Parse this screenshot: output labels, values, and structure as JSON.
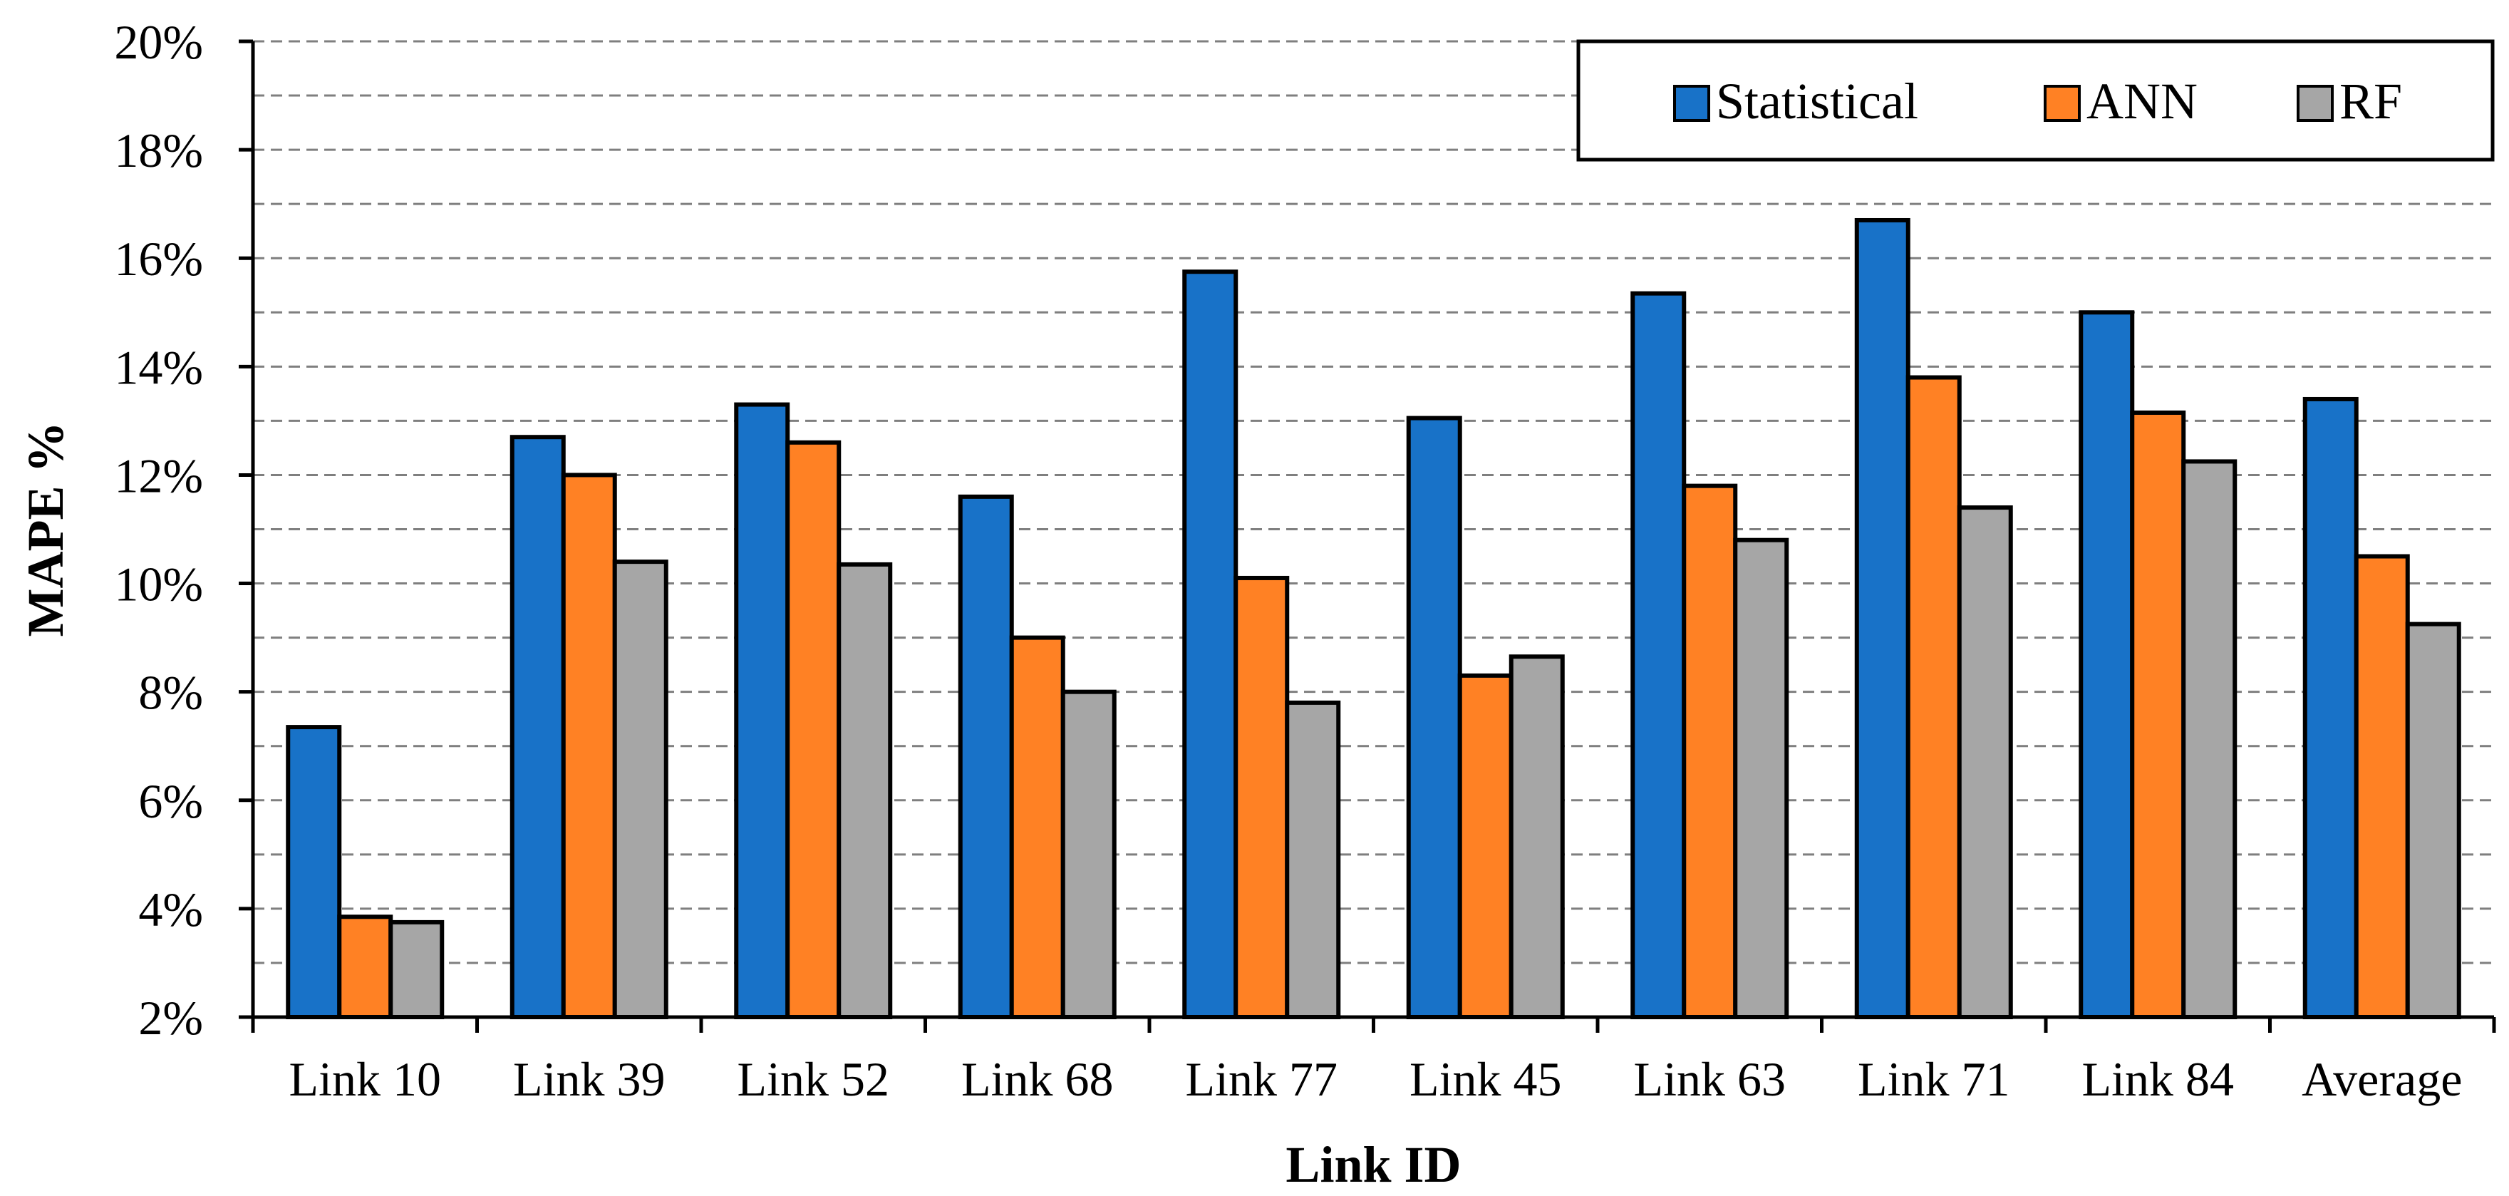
{
  "chart_data": {
    "type": "bar",
    "categories": [
      "Link 10",
      "Link 39",
      "Link 52",
      "Link 68",
      "Link 77",
      "Link 45",
      "Link 63",
      "Link 71",
      "Link 84",
      "Average"
    ],
    "series": [
      {
        "name": "Statistical",
        "color": "#1872C8",
        "values": [
          7.35,
          12.7,
          13.3,
          11.6,
          15.75,
          13.05,
          15.35,
          16.7,
          15.0,
          13.4
        ]
      },
      {
        "name": "ANN",
        "color": "#FF8124",
        "values": [
          3.85,
          12.0,
          12.6,
          9.0,
          10.1,
          8.3,
          11.8,
          13.8,
          13.15,
          10.5
        ]
      },
      {
        "name": "RF",
        "color": "#A6A6A6",
        "values": [
          3.75,
          10.4,
          10.35,
          8.0,
          7.8,
          8.65,
          10.8,
          11.4,
          12.25,
          9.25
        ]
      }
    ],
    "xlabel": "Link ID",
    "ylabel": "MAPE %",
    "ylim": [
      2,
      20
    ],
    "yticks": [
      "2%",
      "4%",
      "6%",
      "8%",
      "10%",
      "12%",
      "14%",
      "16%",
      "18%",
      "20%"
    ],
    "ytick_values": [
      2,
      4,
      6,
      8,
      10,
      12,
      14,
      16,
      18,
      20
    ],
    "grid": true,
    "grid_step": 1,
    "legend_position": "top-right"
  }
}
